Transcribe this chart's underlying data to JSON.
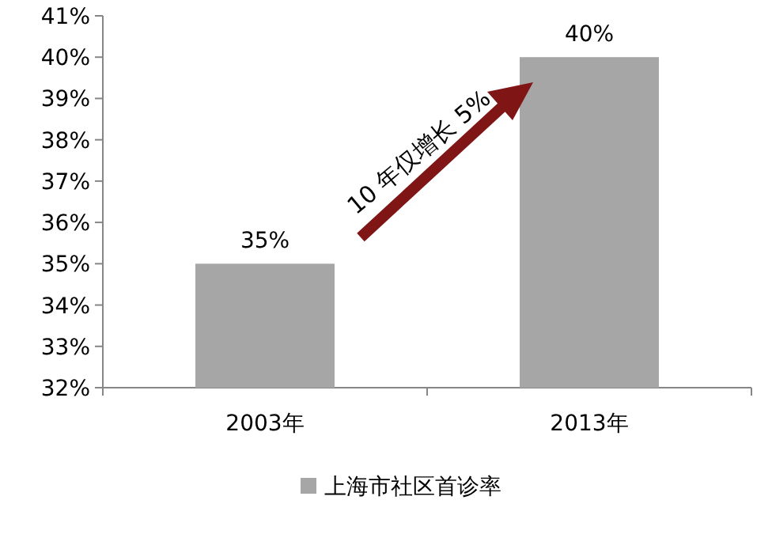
{
  "chart_data": {
    "type": "bar",
    "categories": [
      "2003年",
      "2013年"
    ],
    "series": [
      {
        "name": "上海市社区首诊率",
        "color": "#a6a6a6",
        "values": [
          35,
          40
        ],
        "value_labels": [
          "35%",
          "40%"
        ]
      }
    ],
    "ylim": [
      32,
      41
    ],
    "yticks": [
      {
        "value": 32,
        "label": "32%"
      },
      {
        "value": 33,
        "label": "33%"
      },
      {
        "value": 34,
        "label": "34%"
      },
      {
        "value": 35,
        "label": "35%"
      },
      {
        "value": 36,
        "label": "36%"
      },
      {
        "value": 37,
        "label": "37%"
      },
      {
        "value": 38,
        "label": "38%"
      },
      {
        "value": 39,
        "label": "39%"
      },
      {
        "value": 40,
        "label": "40%"
      },
      {
        "value": 41,
        "label": "41%"
      }
    ],
    "grid": false,
    "legend": "bottom",
    "annotations": [
      "10 年仅增长 5%"
    ]
  }
}
